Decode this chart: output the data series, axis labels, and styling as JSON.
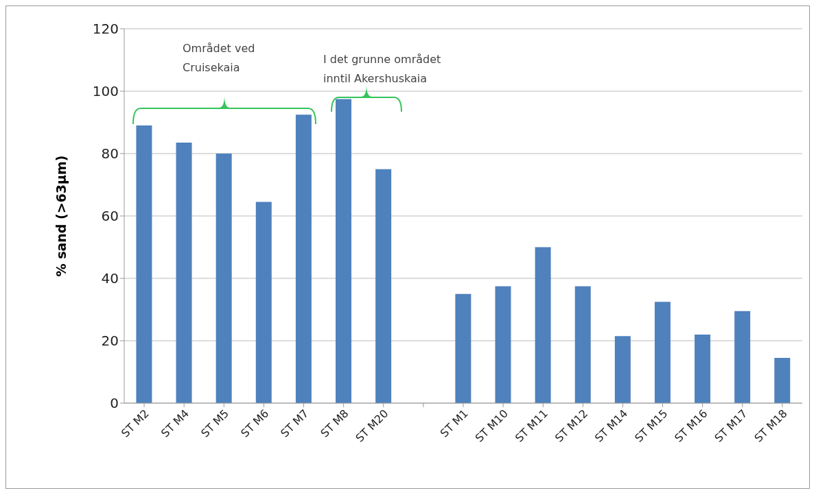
{
  "chart_data": {
    "type": "bar",
    "ylabel": "% sand (>63µm)",
    "categories": [
      "ST M2",
      "ST M4",
      "ST M5",
      "ST M6",
      "ST M7",
      "ST M8",
      "ST M20",
      null,
      "ST M1",
      "ST M10",
      "ST M11",
      "ST M12",
      "ST M14",
      "ST M15",
      "ST M16",
      "ST M17",
      "ST M18"
    ],
    "values": [
      89,
      83.5,
      80,
      64.5,
      92.5,
      97.5,
      75,
      null,
      35,
      37.5,
      50,
      37.5,
      21.5,
      32.5,
      22,
      29.5,
      14.5
    ],
    "color": "#4f81bd",
    "ylim": [
      0,
      120
    ],
    "yticks": [
      0,
      20,
      40,
      60,
      80,
      100,
      120
    ],
    "grid": "y",
    "legend": false,
    "annotations": [
      "Området ved\nCruisekaia",
      "I det grunne området\ninntil Akershuskaia"
    ]
  }
}
